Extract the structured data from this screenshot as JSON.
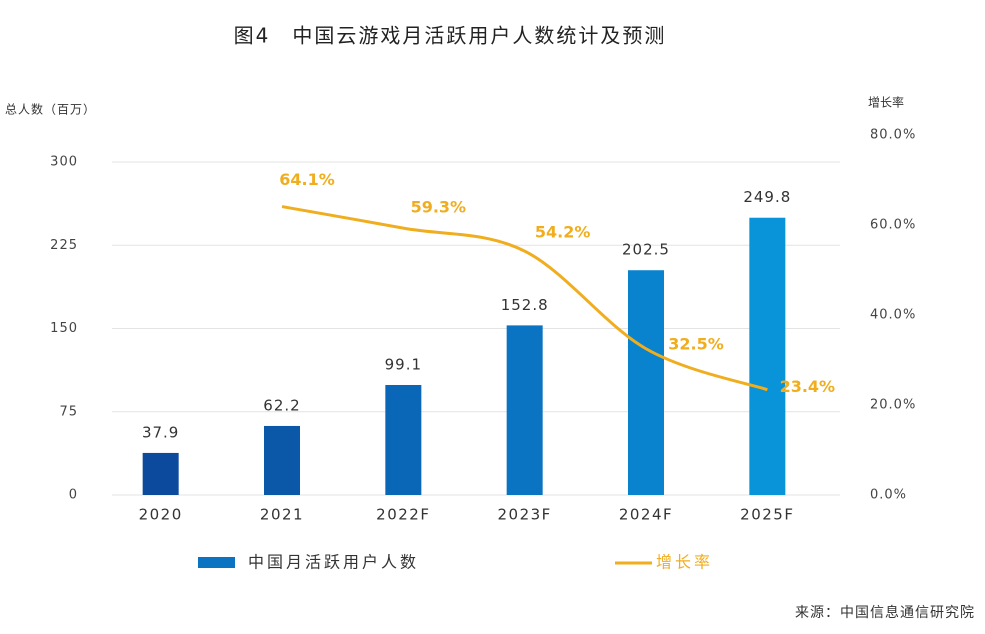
{
  "chart_data": {
    "type": "bar_line",
    "title": "图4　中国云游戏月活跃用户人数统计及预测",
    "y_label": "总人数（百万）",
    "y2_label": "增长率",
    "source": "来源：中国信息通信研究院",
    "categories": [
      "2020",
      "2021",
      "2022F",
      "2023F",
      "2024F",
      "2025F"
    ],
    "series": [
      {
        "name": "中国月活跃用户人数",
        "type": "bar",
        "colors": [
          "#0b4a9c",
          "#0b57a8",
          "#0a66b6",
          "#0a74c2",
          "#0983cd",
          "#0994d9"
        ],
        "values": [
          37.9,
          62.2,
          99.1,
          152.8,
          202.5,
          249.8
        ]
      },
      {
        "name": "增长率",
        "type": "line",
        "axis": "y2",
        "color": "#f0ad1e",
        "values": [
          null,
          64.1,
          59.3,
          54.2,
          32.5,
          23.4
        ],
        "value_labels": [
          null,
          "64.1%",
          "59.3%",
          "54.2%",
          "32.5%",
          "23.4%"
        ]
      }
    ],
    "ylim": [
      0,
      300
    ],
    "yticks": [
      0,
      75,
      150,
      225,
      300
    ],
    "y2lim": [
      0,
      80
    ],
    "y2ticks": [
      {
        "value": 0,
        "label": "0.0%"
      },
      {
        "value": 20,
        "label": "20.0%"
      },
      {
        "value": 40,
        "label": "40.0%"
      },
      {
        "value": 60,
        "label": "60.0%"
      },
      {
        "value": 80,
        "label": "80.0%"
      }
    ],
    "grid": true
  }
}
